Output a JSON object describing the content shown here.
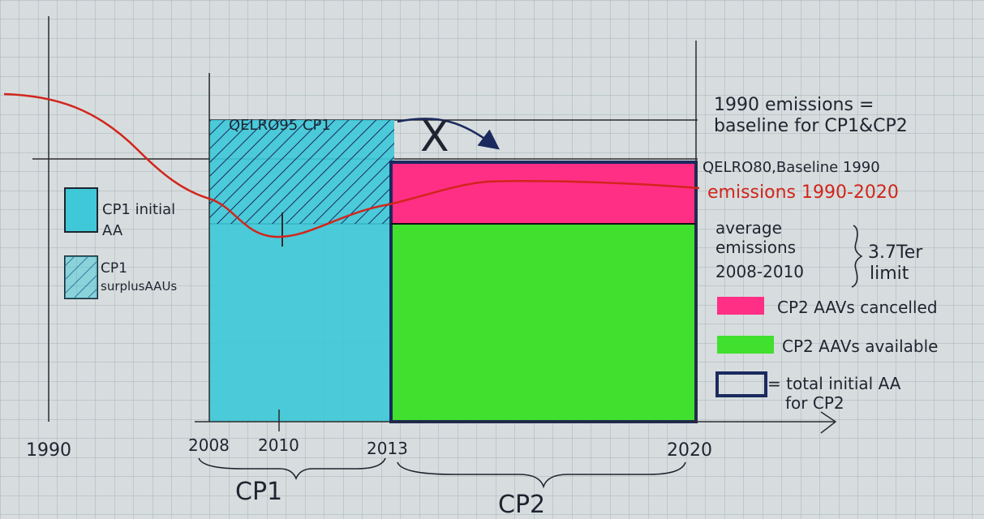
{
  "colors": {
    "paper": "#d7ddde",
    "grid": "#a6b2b6",
    "ink": "#1f2430",
    "cyan": "#3fc8d8",
    "pink": "#ff2f86",
    "green": "#41df2e",
    "navy": "#1b2a5e",
    "red": "#d2251c"
  },
  "annotations": {
    "qelro_cp1": "QELRO95 CP1",
    "cross_mark": "X",
    "baseline_line1": "1990 emissions =",
    "baseline_line2": "baseline for CP1&CP2",
    "qelro_cp2": "QELRO80,Baseline 1990",
    "emissions_label": "emissions 1990-2020",
    "average_line1": "average",
    "average_line2": "emissions",
    "average_line3": "2008-2010",
    "limit_value": "3.7Ter",
    "limit_word": "limit"
  },
  "legend_left": {
    "initial_aa_line1": "CP1 initial",
    "initial_aa_line2": "AA",
    "surplus_line1": "CP1",
    "surplus_line2": "surplusAAUs"
  },
  "legend_right": {
    "cancelled": "CP2 AAVs cancelled",
    "available": "CP2 AAVs available",
    "total_line1": "= total initial AA",
    "total_line2": "for CP2"
  },
  "axis": {
    "tick_1990": "1990",
    "tick_2008": "2008",
    "tick_2010": "2010",
    "tick_2013": "2013",
    "tick_2020": "2020",
    "period_cp1": "CP1",
    "period_cp2": "CP2"
  }
}
